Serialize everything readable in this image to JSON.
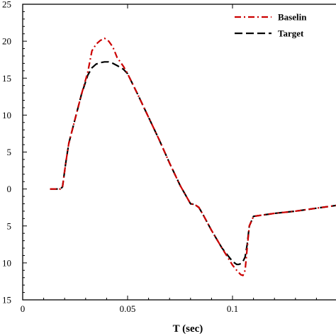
{
  "chart_data": {
    "type": "line",
    "title": "",
    "xlabel": "T (sec)",
    "ylabel": "",
    "xlim": [
      0,
      0.15
    ],
    "ylim": [
      -15,
      25
    ],
    "x_ticks": [
      0,
      0.05,
      0.1
    ],
    "x_tick_labels": [
      "0",
      "0.05",
      "0.1"
    ],
    "y_ticks": [
      -15,
      -10,
      -5,
      0,
      5,
      10,
      15,
      20,
      25
    ],
    "y_tick_labels": [
      "15",
      "10",
      "5",
      "0",
      "5",
      "10",
      "15",
      "20",
      "25"
    ],
    "grid": false,
    "legend_position": "top-right",
    "series": [
      {
        "name": "Baselin",
        "color": "#cc0000",
        "dash": "dashdot",
        "x": [
          0.013,
          0.018,
          0.019,
          0.0205,
          0.022,
          0.025,
          0.028,
          0.031,
          0.033,
          0.035,
          0.037,
          0.039,
          0.041,
          0.043,
          0.045,
          0.048,
          0.05,
          0.055,
          0.06,
          0.065,
          0.07,
          0.075,
          0.08,
          0.082,
          0.084,
          0.086,
          0.09,
          0.095,
          0.1,
          0.102,
          0.104,
          0.105,
          0.106,
          0.107,
          0.108,
          0.11,
          0.115,
          0.12,
          0.13,
          0.14,
          0.15
        ],
        "y": [
          0,
          0,
          0.3,
          3.5,
          6.2,
          9.5,
          12.8,
          15.8,
          18.7,
          19.6,
          20.1,
          20.4,
          20.0,
          19.2,
          17.8,
          16.6,
          15.6,
          12.7,
          9.7,
          6.7,
          3.5,
          0.5,
          -2.0,
          -2.1,
          -2.5,
          -3.5,
          -5.6,
          -8.0,
          -10.3,
          -11.0,
          -11.6,
          -11.7,
          -11.0,
          -8.0,
          -5.0,
          -3.7,
          -3.5,
          -3.3,
          -3.0,
          -2.6,
          -2.2
        ]
      },
      {
        "name": "Target",
        "color": "#000000",
        "dash": "dashed",
        "x": [
          0.013,
          0.018,
          0.019,
          0.0205,
          0.022,
          0.025,
          0.028,
          0.031,
          0.033,
          0.035,
          0.037,
          0.039,
          0.041,
          0.043,
          0.045,
          0.048,
          0.05,
          0.055,
          0.06,
          0.065,
          0.07,
          0.075,
          0.08,
          0.082,
          0.084,
          0.086,
          0.09,
          0.095,
          0.1,
          0.102,
          0.103,
          0.104,
          0.105,
          0.106,
          0.107,
          0.108,
          0.11,
          0.115,
          0.12,
          0.13,
          0.14,
          0.15
        ],
        "y": [
          0,
          0,
          0.3,
          3.5,
          6.2,
          9.5,
          12.8,
          15.4,
          16.4,
          16.9,
          17.1,
          17.2,
          17.2,
          17.0,
          16.7,
          16.2,
          15.6,
          12.7,
          9.7,
          6.7,
          3.5,
          0.5,
          -2.0,
          -2.1,
          -2.5,
          -3.5,
          -5.6,
          -8.0,
          -9.8,
          -10.2,
          -10.2,
          -10.1,
          -9.8,
          -9.2,
          -7.5,
          -5.0,
          -3.7,
          -3.5,
          -3.3,
          -3.0,
          -2.6,
          -2.2
        ]
      }
    ]
  }
}
